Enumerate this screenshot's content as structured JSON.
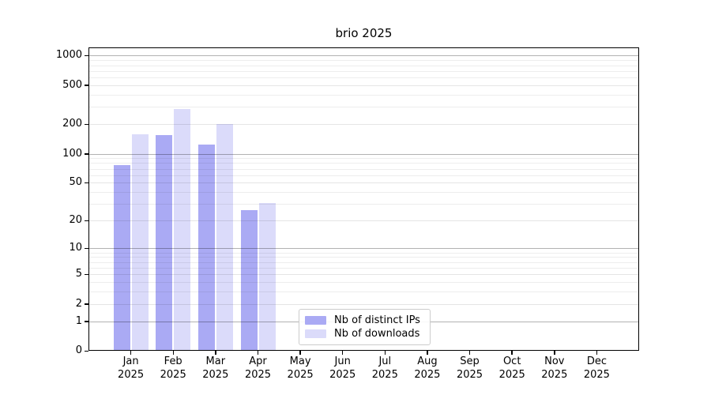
{
  "chart_data": {
    "type": "bar",
    "title": "brio 2025",
    "y_scale": "log1p",
    "categories": [
      "Jan",
      "Feb",
      "Mar",
      "Apr",
      "May",
      "Jun",
      "Jul",
      "Aug",
      "Sep",
      "Oct",
      "Nov",
      "Dec"
    ],
    "x_tick_year": "2025",
    "series": [
      {
        "name": "Nb of distinct IPs",
        "slug": "distinct-ips",
        "color": "#aaaaf4",
        "values": [
          76,
          155,
          124,
          26,
          0,
          0,
          0,
          0,
          0,
          0,
          0,
          0
        ]
      },
      {
        "name": "Nb of downloads",
        "slug": "downloads",
        "color": "#dbdbfa",
        "values": [
          157,
          285,
          200,
          31,
          0,
          0,
          0,
          0,
          0,
          0,
          0,
          0
        ]
      }
    ],
    "y_ticks": [
      0,
      1,
      2,
      5,
      10,
      20,
      50,
      100,
      200,
      500,
      1000
    ],
    "y_major_gridlines": [
      1,
      10,
      100,
      1000
    ],
    "y_minor_gridlines": [
      3,
      4,
      6,
      7,
      8,
      9,
      30,
      40,
      60,
      70,
      80,
      90,
      300,
      400,
      600,
      700,
      800,
      900
    ],
    "ylim": [
      0,
      1200
    ],
    "grid": "on",
    "legend_position": "lower center",
    "colors": {
      "major_grid": "rgba(0,0,0,0.30)",
      "labeled_minor_grid": "rgba(0,0,0,0.10)",
      "minor_grid": "rgba(0,0,0,0.07)",
      "axis": "#000000",
      "background": "#ffffff"
    }
  }
}
